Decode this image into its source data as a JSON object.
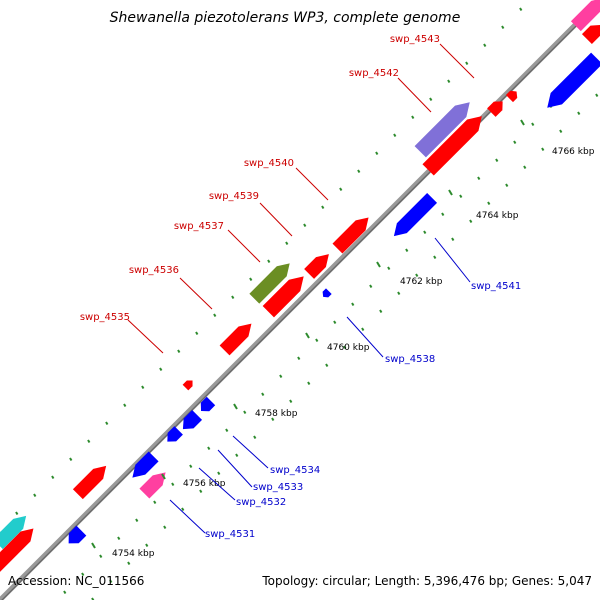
{
  "title": "Shewanella piezotolerans WP3, complete genome",
  "footer": {
    "accession": "Accession: NC_011566",
    "summary": "Topology: circular; Length: 5,396,476 bp; Genes: 5,047"
  },
  "colors": {
    "backbone": "#999999",
    "forward": "#ff0000",
    "reverse": "#0000ff",
    "forward_label": "#cc0000",
    "reverse_label": "#0000cc",
    "magenta": "#ff3fa0",
    "cyan": "#22cccc",
    "olive": "#6b8e23",
    "purple": "#8070d8",
    "dots": "#2e8b2e"
  },
  "ticks": [
    {
      "label": "4754 kbp"
    },
    {
      "label": "4756 kbp"
    },
    {
      "label": "4758 kbp"
    },
    {
      "label": "4760 kbp"
    },
    {
      "label": "4762 kbp"
    },
    {
      "label": "4764 kbp"
    },
    {
      "label": "4766 kbp"
    }
  ],
  "gene_labels": [
    {
      "text": "swp_4531",
      "strand": "reverse"
    },
    {
      "text": "swp_4532",
      "strand": "reverse"
    },
    {
      "text": "swp_4533",
      "strand": "reverse"
    },
    {
      "text": "swp_4534",
      "strand": "reverse"
    },
    {
      "text": "swp_4535",
      "strand": "forward"
    },
    {
      "text": "swp_4536",
      "strand": "forward"
    },
    {
      "text": "swp_4537",
      "strand": "forward"
    },
    {
      "text": "swp_4538",
      "strand": "reverse"
    },
    {
      "text": "swp_4539",
      "strand": "forward"
    },
    {
      "text": "swp_4540",
      "strand": "forward"
    },
    {
      "text": "swp_4541",
      "strand": "reverse"
    },
    {
      "text": "swp_4542",
      "strand": "forward"
    },
    {
      "text": "swp_4543",
      "strand": "forward"
    }
  ]
}
